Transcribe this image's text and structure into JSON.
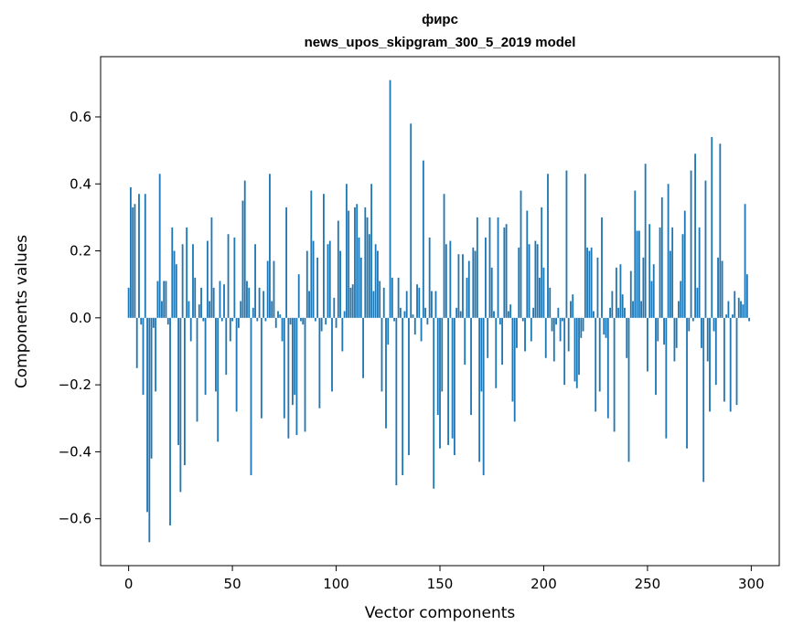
{
  "chart_data": {
    "type": "bar",
    "title": "фирс",
    "subtitle": "news_upos_skipgram_300_5_2019 model",
    "xlabel": "Vector components",
    "ylabel": "Components values",
    "xlim": [
      -13.5,
      313.5
    ],
    "ylim": [
      -0.74,
      0.78
    ],
    "x_ticks": [
      0,
      50,
      100,
      150,
      200,
      250,
      300
    ],
    "x_tick_labels": [
      "0",
      "50",
      "100",
      "150",
      "200",
      "250",
      "300"
    ],
    "y_ticks": [
      -0.6,
      -0.4,
      -0.2,
      0.0,
      0.2,
      0.4,
      0.6
    ],
    "y_tick_labels": [
      "−0.6",
      "−0.4",
      "−0.2",
      "0.0",
      "0.2",
      "0.4",
      "0.6"
    ],
    "bar_color": "#1f77b4",
    "grid": false,
    "legend": "none",
    "x": [
      0,
      1,
      2,
      3,
      4,
      5,
      6,
      7,
      8,
      9,
      10,
      11,
      12,
      13,
      14,
      15,
      16,
      17,
      18,
      19,
      20,
      21,
      22,
      23,
      24,
      25,
      26,
      27,
      28,
      29,
      30,
      31,
      32,
      33,
      34,
      35,
      36,
      37,
      38,
      39,
      40,
      41,
      42,
      43,
      44,
      45,
      46,
      47,
      48,
      49,
      50,
      51,
      52,
      53,
      54,
      55,
      56,
      57,
      58,
      59,
      60,
      61,
      62,
      63,
      64,
      65,
      66,
      67,
      68,
      69,
      70,
      71,
      72,
      73,
      74,
      75,
      76,
      77,
      78,
      79,
      80,
      81,
      82,
      83,
      84,
      85,
      86,
      87,
      88,
      89,
      90,
      91,
      92,
      93,
      94,
      95,
      96,
      97,
      98,
      99,
      100,
      101,
      102,
      103,
      104,
      105,
      106,
      107,
      108,
      109,
      110,
      111,
      112,
      113,
      114,
      115,
      116,
      117,
      118,
      119,
      120,
      121,
      122,
      123,
      124,
      125,
      126,
      127,
      128,
      129,
      130,
      131,
      132,
      133,
      134,
      135,
      136,
      137,
      138,
      139,
      140,
      141,
      142,
      143,
      144,
      145,
      146,
      147,
      148,
      149,
      150,
      151,
      152,
      153,
      154,
      155,
      156,
      157,
      158,
      159,
      160,
      161,
      162,
      163,
      164,
      165,
      166,
      167,
      168,
      169,
      170,
      171,
      172,
      173,
      174,
      175,
      176,
      177,
      178,
      179,
      180,
      181,
      182,
      183,
      184,
      185,
      186,
      187,
      188,
      189,
      190,
      191,
      192,
      193,
      194,
      195,
      196,
      197,
      198,
      199,
      200,
      201,
      202,
      203,
      204,
      205,
      206,
      207,
      208,
      209,
      210,
      211,
      212,
      213,
      214,
      215,
      216,
      217,
      218,
      219,
      220,
      221,
      222,
      223,
      224,
      225,
      226,
      227,
      228,
      229,
      230,
      231,
      232,
      233,
      234,
      235,
      236,
      237,
      238,
      239,
      240,
      241,
      242,
      243,
      244,
      245,
      246,
      247,
      248,
      249,
      250,
      251,
      252,
      253,
      254,
      255,
      256,
      257,
      258,
      259,
      260,
      261,
      262,
      263,
      264,
      265,
      266,
      267,
      268,
      269,
      270,
      271,
      272,
      273,
      274,
      275,
      276,
      277,
      278,
      279,
      280,
      281,
      282,
      283,
      284,
      285,
      286,
      287,
      288,
      289,
      290,
      291,
      292,
      293,
      294,
      295,
      296,
      297,
      298,
      299
    ],
    "values": [
      0.09,
      0.39,
      0.33,
      0.34,
      -0.15,
      0.37,
      -0.02,
      -0.23,
      0.37,
      -0.58,
      -0.67,
      -0.42,
      -0.03,
      -0.22,
      0.11,
      0.43,
      0.05,
      0.11,
      0.11,
      -0.02,
      -0.62,
      0.27,
      0.2,
      0.16,
      -0.38,
      -0.52,
      0.22,
      -0.44,
      0.27,
      0.05,
      -0.07,
      0.22,
      0.12,
      -0.31,
      0.04,
      0.09,
      -0.01,
      -0.23,
      0.23,
      0.05,
      0.3,
      0.09,
      -0.22,
      -0.37,
      0.11,
      -0.01,
      0.1,
      -0.17,
      0.25,
      -0.07,
      -0.01,
      0.24,
      -0.28,
      -0.03,
      0.05,
      0.35,
      0.41,
      0.11,
      0.09,
      -0.47,
      0.03,
      0.22,
      -0.01,
      0.09,
      -0.3,
      0.08,
      -0.01,
      0.17,
      0.43,
      0.05,
      0.17,
      -0.03,
      0.02,
      0.01,
      -0.07,
      -0.3,
      0.33,
      -0.36,
      -0.02,
      -0.26,
      -0.23,
      -0.35,
      0.13,
      -0.01,
      -0.02,
      -0.34,
      0.2,
      0.08,
      0.38,
      0.23,
      -0.01,
      0.18,
      -0.27,
      -0.04,
      0.37,
      -0.02,
      0.22,
      0.23,
      -0.22,
      0.06,
      -0.03,
      0.29,
      0.2,
      -0.1,
      0.02,
      0.4,
      0.32,
      0.09,
      0.1,
      0.33,
      0.34,
      0.24,
      0.18,
      -0.18,
      0.33,
      0.3,
      0.25,
      0.4,
      0.08,
      0.22,
      0.2,
      0.11,
      -0.22,
      0.09,
      -0.33,
      -0.08,
      0.71,
      0.12,
      -0.01,
      -0.5,
      0.12,
      0.03,
      -0.47,
      0.02,
      0.08,
      -0.41,
      0.58,
      0.01,
      -0.05,
      0.1,
      0.09,
      -0.07,
      0.47,
      0.03,
      -0.02,
      0.24,
      0.08,
      -0.51,
      0.08,
      -0.29,
      -0.39,
      -0.22,
      0.37,
      0.22,
      -0.38,
      0.23,
      -0.36,
      -0.41,
      0.03,
      0.19,
      0.02,
      0.19,
      -0.14,
      0.12,
      0.17,
      -0.29,
      0.21,
      0.2,
      0.3,
      -0.43,
      -0.22,
      -0.47,
      0.24,
      -0.12,
      0.3,
      0.15,
      0.02,
      -0.21,
      0.3,
      -0.02,
      -0.14,
      0.27,
      0.28,
      0.02,
      0.04,
      -0.25,
      -0.31,
      -0.09,
      0.21,
      0.38,
      -0.01,
      -0.1,
      0.32,
      0.22,
      -0.07,
      0.03,
      0.23,
      0.22,
      0.12,
      0.33,
      0.15,
      -0.12,
      0.43,
      0.09,
      -0.04,
      -0.13,
      -0.02,
      0.03,
      -0.07,
      -0.01,
      -0.2,
      0.44,
      -0.1,
      0.05,
      0.07,
      -0.19,
      -0.21,
      -0.17,
      -0.06,
      -0.04,
      0.43,
      0.21,
      0.2,
      0.21,
      0.02,
      -0.28,
      0.18,
      -0.22,
      0.3,
      -0.05,
      -0.06,
      -0.3,
      0.03,
      0.08,
      -0.34,
      0.15,
      0.03,
      0.16,
      0.07,
      0.03,
      -0.12,
      -0.43,
      0.14,
      0.05,
      0.38,
      0.26,
      0.26,
      0.05,
      0.18,
      0.46,
      -0.16,
      0.28,
      0.11,
      0.16,
      -0.23,
      -0.07,
      0.27,
      0.36,
      -0.08,
      -0.36,
      0.4,
      0.2,
      0.27,
      -0.13,
      -0.09,
      0.05,
      0.11,
      0.25,
      0.32,
      -0.39,
      -0.04,
      0.44,
      -0.01,
      0.49,
      0.09,
      0.27,
      -0.09,
      -0.49,
      0.41,
      -0.13,
      -0.28,
      0.54,
      -0.04,
      -0.2,
      0.18,
      0.52,
      0.17,
      -0.25,
      0.01,
      0.05,
      -0.28,
      0.01,
      0.08,
      -0.26,
      0.06,
      0.05,
      0.04,
      0.34,
      0.13,
      -0.01
    ]
  }
}
